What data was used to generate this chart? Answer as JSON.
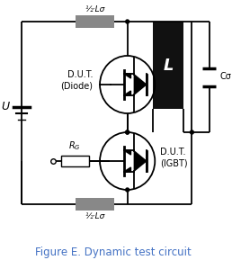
{
  "title": "Figure E. Dynamic test circuit",
  "title_color": "#4472C4",
  "bg_color": "#ffffff",
  "line_color": "#000000",
  "inductor_fill": "#111111",
  "resistor_fill": "#888888",
  "label_L_sigma_top": "½·Lσ",
  "label_L_sigma_bot": "½·Lσ",
  "label_L": "L",
  "label_C": "Cσ",
  "label_U": "U",
  "label_R": "RG",
  "label_DUT_diode": "D.U.T.\n(Diode)",
  "label_DUT_igbt": "D.U.T.\n(IGBT)",
  "lw": 1.3
}
